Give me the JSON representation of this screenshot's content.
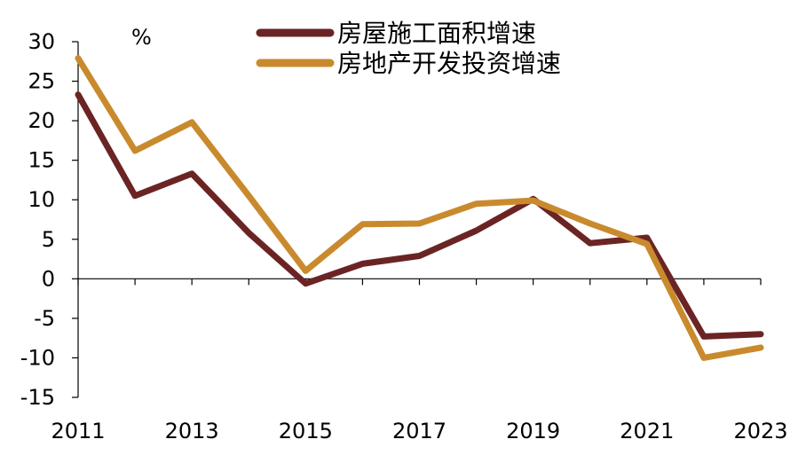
{
  "chart_data": {
    "type": "line",
    "unit_label": "%",
    "x": [
      2011,
      2012,
      2013,
      2014,
      2015,
      2016,
      2017,
      2018,
      2019,
      2020,
      2021,
      2022,
      2023
    ],
    "x_tick_labels": [
      "2011",
      "2013",
      "2015",
      "2017",
      "2019",
      "2021",
      "2023"
    ],
    "y_ticks": [
      30,
      25,
      20,
      15,
      10,
      5,
      0,
      -5,
      -10,
      -15
    ],
    "ylim": [
      -15,
      30
    ],
    "grid": false,
    "legend_position": "top-center",
    "series": [
      {
        "name": "房屋施工面积增速",
        "color": "#6b2424",
        "values": [
          23.3,
          10.5,
          13.3,
          5.8,
          -0.6,
          1.9,
          2.9,
          6.1,
          10.1,
          4.5,
          5.2,
          -7.3,
          -7.0
        ]
      },
      {
        "name": "房地产开发投资增速",
        "color": "#c98a2e",
        "values": [
          27.9,
          16.2,
          19.8,
          10.5,
          1.0,
          6.9,
          7.0,
          9.5,
          9.9,
          7.0,
          4.4,
          -10.0,
          -8.7
        ]
      }
    ]
  }
}
